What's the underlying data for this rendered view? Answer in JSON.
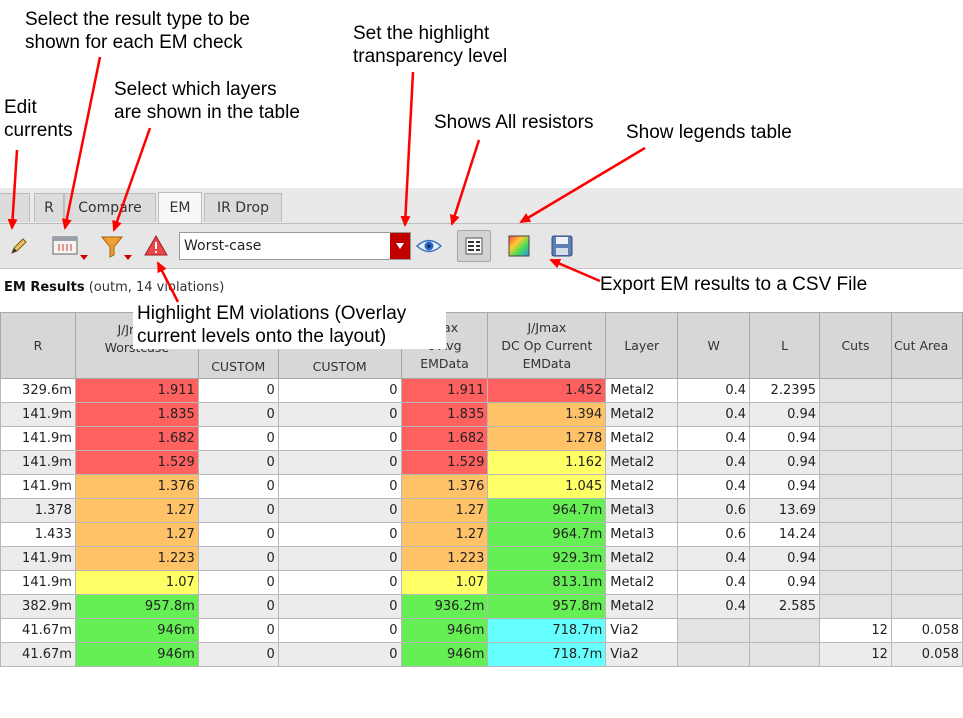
{
  "annotations": {
    "result_type": [
      "Select the result type to be",
      "shown for each EM check"
    ],
    "edit_currents": [
      "Edit",
      "currents"
    ],
    "select_layers": [
      "Select which layers",
      "are shown in the table"
    ],
    "transparency": [
      "Set the highlight",
      "transparency level"
    ],
    "shows_resistors": "Shows All resistors",
    "legends": "Show legends table",
    "export": "Export EM results to a CSV File",
    "highlight_violations": [
      "Highlight EM violations (Overlay",
      "current levels onto the layout)"
    ]
  },
  "tabs": [
    "R",
    "Compare",
    "EM",
    "IR Drop"
  ],
  "active_tab": "EM",
  "toolbar": {
    "result_type_value": "Worst-case",
    "icons": [
      "pencil-icon",
      "table-columns-icon",
      "filter-icon",
      "warning-icon",
      "eye-icon",
      "resistor-list-icon",
      "legend-icon",
      "save-icon"
    ]
  },
  "results": {
    "title": "EM Results",
    "subtitle": "(outm, 14 violations)"
  },
  "table": {
    "headers": {
      "r": "R",
      "worstcase": [
        "J/Jmax",
        "Worstcase"
      ],
      "custom1": "CUSTOM",
      "custom2": "CUSTOM",
      "avg": [
        "J/Jmax",
        "DC Op Current",
        "EMData"
      ],
      "avg_visible": [
        "max",
        "c-Avg",
        "EMData"
      ],
      "dcop": [
        "J/Jmax",
        "DC Op Current",
        "EMData"
      ],
      "layer": "Layer",
      "w": "W",
      "l": "L",
      "cuts": "Cuts",
      "cutarea": "Cut Area"
    },
    "rows": [
      {
        "r": "329.6m",
        "wc": "1.911",
        "c1": "0",
        "c2": "0",
        "avg": "1.911",
        "dc": "1.452",
        "layer": "Metal2",
        "w": "0.4",
        "l": "2.2395",
        "cuts": "",
        "ca": ""
      },
      {
        "r": "141.9m",
        "wc": "1.835",
        "c1": "0",
        "c2": "0",
        "avg": "1.835",
        "dc": "1.394",
        "layer": "Metal2",
        "w": "0.4",
        "l": "0.94",
        "cuts": "",
        "ca": ""
      },
      {
        "r": "141.9m",
        "wc": "1.682",
        "c1": "0",
        "c2": "0",
        "avg": "1.682",
        "dc": "1.278",
        "layer": "Metal2",
        "w": "0.4",
        "l": "0.94",
        "cuts": "",
        "ca": ""
      },
      {
        "r": "141.9m",
        "wc": "1.529",
        "c1": "0",
        "c2": "0",
        "avg": "1.529",
        "dc": "1.162",
        "layer": "Metal2",
        "w": "0.4",
        "l": "0.94",
        "cuts": "",
        "ca": ""
      },
      {
        "r": "141.9m",
        "wc": "1.376",
        "c1": "0",
        "c2": "0",
        "avg": "1.376",
        "dc": "1.045",
        "layer": "Metal2",
        "w": "0.4",
        "l": "0.94",
        "cuts": "",
        "ca": ""
      },
      {
        "r": "1.378",
        "wc": "1.27",
        "c1": "0",
        "c2": "0",
        "avg": "1.27",
        "dc": "964.7m",
        "layer": "Metal3",
        "w": "0.6",
        "l": "13.69",
        "cuts": "",
        "ca": ""
      },
      {
        "r": "1.433",
        "wc": "1.27",
        "c1": "0",
        "c2": "0",
        "avg": "1.27",
        "dc": "964.7m",
        "layer": "Metal3",
        "w": "0.6",
        "l": "14.24",
        "cuts": "",
        "ca": ""
      },
      {
        "r": "141.9m",
        "wc": "1.223",
        "c1": "0",
        "c2": "0",
        "avg": "1.223",
        "dc": "929.3m",
        "layer": "Metal2",
        "w": "0.4",
        "l": "0.94",
        "cuts": "",
        "ca": ""
      },
      {
        "r": "141.9m",
        "wc": "1.07",
        "c1": "0",
        "c2": "0",
        "avg": "1.07",
        "dc": "813.1m",
        "layer": "Metal2",
        "w": "0.4",
        "l": "0.94",
        "cuts": "",
        "ca": ""
      },
      {
        "r": "382.9m",
        "wc": "957.8m",
        "c1": "0",
        "c2": "0",
        "avg": "936.2m",
        "dc": "957.8m",
        "layer": "Metal2",
        "w": "0.4",
        "l": "2.585",
        "cuts": "",
        "ca": ""
      },
      {
        "r": "41.67m",
        "wc": "946m",
        "c1": "0",
        "c2": "0",
        "avg": "946m",
        "dc": "718.7m",
        "layer": "Via2",
        "w": "",
        "l": "",
        "cuts": "12",
        "ca": "0.058"
      },
      {
        "r": "41.67m",
        "wc": "946m",
        "c1": "0",
        "c2": "0",
        "avg": "946m",
        "dc": "718.7m",
        "layer": "Via2",
        "w": "",
        "l": "",
        "cuts": "12",
        "ca": "0.058"
      }
    ],
    "colors": {
      "red": "#ff6060",
      "orange": "#ffc266",
      "yellow": "#ffff66",
      "green": "#66ee55",
      "cyan": "#66ffff"
    },
    "wc_colors": [
      "red",
      "red",
      "red",
      "red",
      "orange",
      "orange",
      "orange",
      "orange",
      "yellow",
      "green",
      "green",
      "green"
    ],
    "avg_colors": [
      "red",
      "red",
      "red",
      "red",
      "orange",
      "orange",
      "orange",
      "orange",
      "yellow",
      "green",
      "green",
      "green"
    ],
    "dc_colors": [
      "red",
      "orange",
      "orange",
      "yellow",
      "yellow",
      "green",
      "green",
      "green",
      "green",
      "green",
      "cyan",
      "cyan"
    ]
  }
}
